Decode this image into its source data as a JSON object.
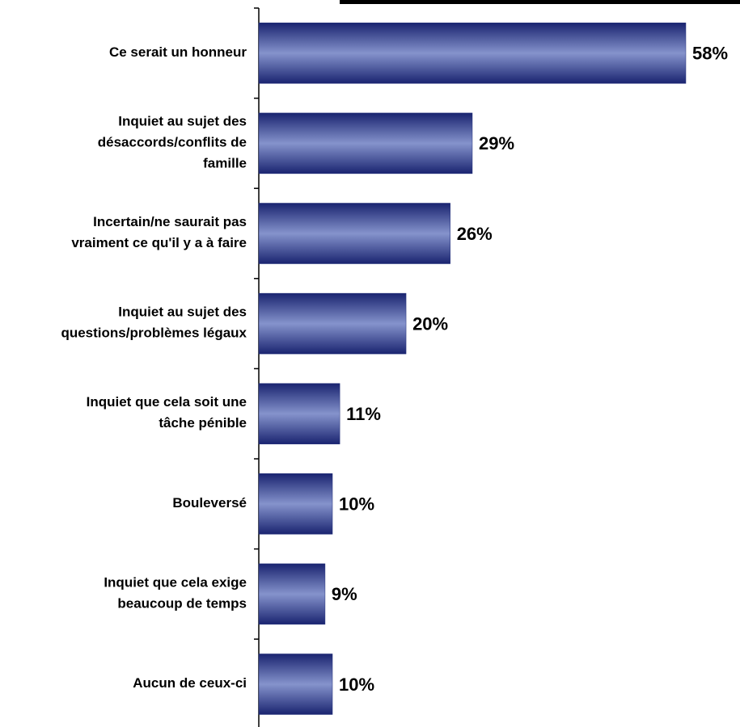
{
  "chart_data": {
    "type": "bar",
    "orientation": "horizontal",
    "categories": [
      "Ce serait un honneur",
      "Inquiet au sujet des\ndésaccords/conflits de\nfamille",
      "Incertain/ne saurait pas\nvraiment ce qu'il y a à faire",
      "Inquiet au sujet des\nquestions/problèmes légaux",
      "Inquiet que cela soit une\ntâche pénible",
      "Bouleversé",
      "Inquiet que cela exige\nbeaucoup de temps",
      "Aucun de ceux-ci"
    ],
    "values": [
      58,
      29,
      26,
      20,
      11,
      10,
      9,
      10
    ],
    "value_labels": [
      "58%",
      "29%",
      "26%",
      "20%",
      "11%",
      "10%",
      "9%",
      "10%"
    ],
    "color": "#23307a"
  }
}
